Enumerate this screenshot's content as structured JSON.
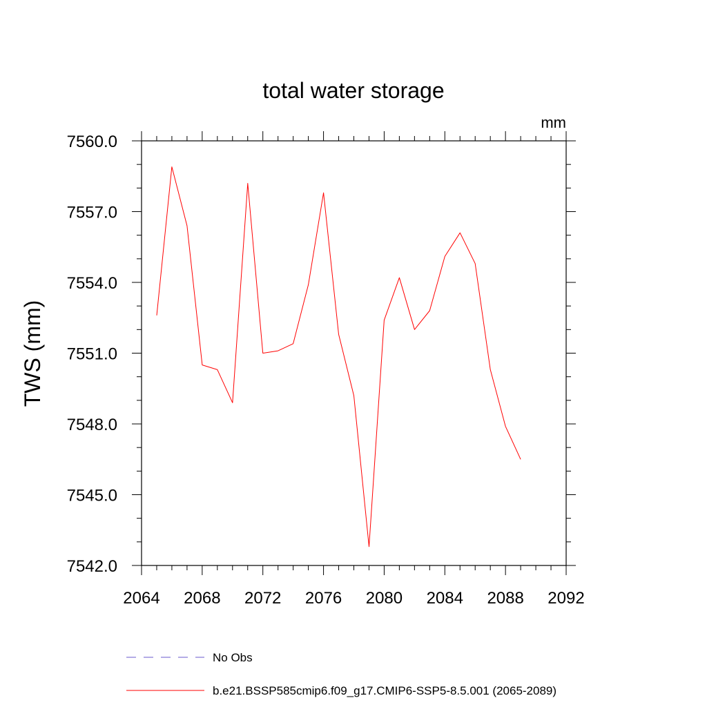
{
  "chart_data": {
    "type": "line",
    "title": "total water storage",
    "units_label": "mm",
    "xlabel": "",
    "ylabel": "TWS  (mm)",
    "xlim": [
      2064,
      2092
    ],
    "ylim": [
      7542.0,
      7560.0
    ],
    "x_ticks": [
      "2064",
      "2068",
      "2072",
      "2076",
      "2080",
      "2084",
      "2088",
      "2092"
    ],
    "y_ticks": [
      "7542.0",
      "7545.0",
      "7548.0",
      "7551.0",
      "7554.0",
      "7557.0",
      "7560.0"
    ],
    "grid": false,
    "legend_position": "bottom",
    "series": [
      {
        "name": "No Obs",
        "color": "#6a5acd",
        "dash": "dashed",
        "x": [],
        "y": []
      },
      {
        "name": "b.e21.BSSP585cmip6.f09_g17.CMIP6-SSP5-8.5.001 (2065-2089)",
        "color": "#ff0000",
        "dash": "solid",
        "x": [
          2065,
          2066,
          2067,
          2068,
          2069,
          2070,
          2071,
          2072,
          2073,
          2074,
          2075,
          2076,
          2077,
          2078,
          2079,
          2080,
          2081,
          2082,
          2083,
          2084,
          2085,
          2086,
          2087,
          2088,
          2089
        ],
        "y": [
          7552.6,
          7558.9,
          7556.4,
          7550.5,
          7550.3,
          7548.9,
          7558.2,
          7551.0,
          7551.1,
          7551.4,
          7553.9,
          7557.8,
          7551.8,
          7549.2,
          7542.8,
          7552.4,
          7554.2,
          7552.0,
          7552.8,
          7555.1,
          7556.1,
          7554.8,
          7550.3,
          7547.9,
          7546.5
        ]
      }
    ]
  }
}
